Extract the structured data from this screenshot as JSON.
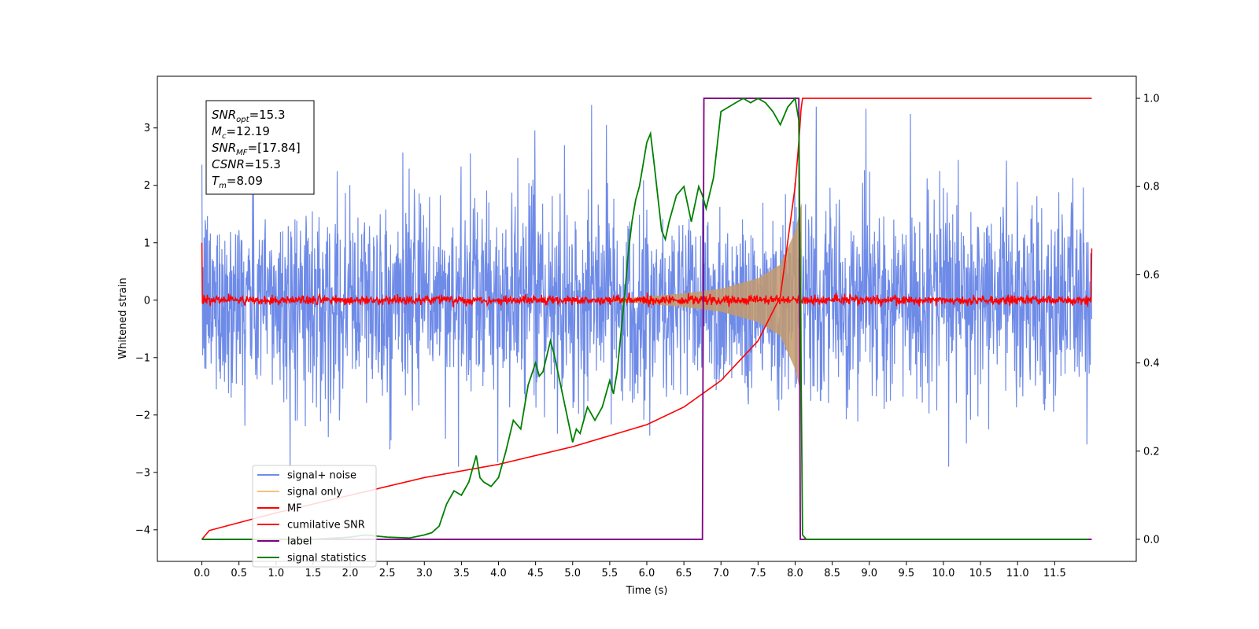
{
  "chart_data": {
    "type": "line",
    "xlabel": "Time (s)",
    "ylabel": "Whitened strain",
    "xlim": [
      -0.6,
      12.6
    ],
    "ylim": [
      -4.55,
      3.9
    ],
    "ylim_right": [
      -0.05,
      1.05
    ],
    "x_ticks": [
      0.0,
      0.5,
      1.0,
      1.5,
      2.0,
      2.5,
      3.0,
      3.5,
      4.0,
      4.5,
      5.0,
      5.5,
      6.0,
      6.5,
      7.0,
      7.5,
      8.0,
      8.5,
      9.0,
      9.5,
      10.0,
      10.5,
      11.0,
      11.5
    ],
    "x_tick_labels": [
      "0.0",
      "0.5",
      "1.0",
      "1.5",
      "2.0",
      "2.5",
      "3.0",
      "3.5",
      "4.0",
      "4.5",
      "5.0",
      "5.5",
      "6.0",
      "6.5",
      "7.0",
      "7.5",
      "8.0",
      "8.5",
      "9.0",
      "9.5",
      "10.0",
      "10.5",
      "11.0",
      "11.5"
    ],
    "y_ticks": [
      -4,
      -3,
      -2,
      -1,
      0,
      1,
      2,
      3
    ],
    "y_tick_labels": [
      "−4",
      "−3",
      "−2",
      "−1",
      "0",
      "1",
      "2",
      "3"
    ],
    "y2_ticks": [
      0.0,
      0.2,
      0.4,
      0.6,
      0.8,
      1.0
    ],
    "y2_tick_labels": [
      "0.0",
      "0.2",
      "0.4",
      "0.6",
      "0.8",
      "1.0"
    ],
    "grid": false,
    "legend_position": "lower-left",
    "time_span": [
      0.0,
      12.0
    ],
    "merger_time": 8.09,
    "chirp_start": 5.3,
    "series": [
      {
        "name": "signal+ noise",
        "axis": "left",
        "color": "#6f8be8",
        "noise_std": 0.85,
        "peak_range": [
          -2.9,
          3.4
        ]
      },
      {
        "name": "signal only",
        "axis": "left",
        "color": "#f2c47a",
        "envelope": {
          "t": [
            5.3,
            6.0,
            6.5,
            7.0,
            7.5,
            7.8,
            8.0,
            8.09
          ],
          "amp": [
            0.01,
            0.06,
            0.12,
            0.2,
            0.38,
            0.62,
            1.2,
            1.7
          ]
        }
      },
      {
        "name": "MF",
        "axis": "left",
        "color": "#ff0000",
        "noise_std": 0.04,
        "edges": {
          "start": 1.0,
          "end": 0.9
        }
      },
      {
        "name": "cumilative SNR",
        "axis": "right",
        "color": "#ff0000",
        "points": {
          "x": [
            0.0,
            0.1,
            1.0,
            2.0,
            3.0,
            4.0,
            5.0,
            6.0,
            6.5,
            7.0,
            7.5,
            7.8,
            8.0,
            8.05,
            8.09,
            8.1,
            12.0
          ],
          "y": [
            0.0,
            0.02,
            0.06,
            0.1,
            0.14,
            0.17,
            0.21,
            0.26,
            0.3,
            0.36,
            0.45,
            0.55,
            0.8,
            0.9,
            1.0,
            1.0,
            1.0
          ]
        }
      },
      {
        "name": "label",
        "axis": "right",
        "color": "#800080",
        "points": {
          "x": [
            0.0,
            6.75,
            6.77,
            8.05,
            8.07,
            12.0
          ],
          "y": [
            0.0,
            0.0,
            1.0,
            1.0,
            0.0,
            0.0
          ]
        }
      },
      {
        "name": "signal statistics",
        "axis": "right",
        "color": "#008000",
        "points": {
          "x": [
            0.0,
            0.5,
            1.0,
            1.5,
            2.0,
            2.2,
            2.5,
            2.8,
            3.0,
            3.1,
            3.2,
            3.3,
            3.4,
            3.5,
            3.6,
            3.7,
            3.75,
            3.8,
            3.9,
            4.0,
            4.1,
            4.2,
            4.3,
            4.35,
            4.4,
            4.5,
            4.55,
            4.6,
            4.7,
            4.75,
            4.8,
            4.9,
            5.0,
            5.05,
            5.1,
            5.2,
            5.3,
            5.4,
            5.5,
            5.55,
            5.6,
            5.7,
            5.75,
            5.8,
            5.85,
            5.9,
            6.0,
            6.05,
            6.1,
            6.2,
            6.25,
            6.3,
            6.4,
            6.5,
            6.6,
            6.7,
            6.75,
            6.8,
            6.9,
            7.0,
            7.1,
            7.2,
            7.3,
            7.4,
            7.5,
            7.6,
            7.7,
            7.8,
            7.9,
            8.0,
            8.05,
            8.1,
            8.15,
            8.2,
            9.0,
            10.0,
            11.0,
            11.95
          ],
          "y": [
            0.0,
            0.0,
            0.0,
            0.0,
            0.005,
            0.01,
            0.005,
            0.003,
            0.01,
            0.015,
            0.03,
            0.08,
            0.11,
            0.1,
            0.13,
            0.19,
            0.14,
            0.13,
            0.12,
            0.14,
            0.2,
            0.27,
            0.25,
            0.3,
            0.35,
            0.4,
            0.37,
            0.38,
            0.45,
            0.42,
            0.38,
            0.3,
            0.22,
            0.25,
            0.24,
            0.3,
            0.27,
            0.3,
            0.36,
            0.33,
            0.38,
            0.55,
            0.65,
            0.72,
            0.77,
            0.8,
            0.9,
            0.92,
            0.85,
            0.7,
            0.68,
            0.72,
            0.78,
            0.8,
            0.72,
            0.8,
            0.78,
            0.75,
            0.82,
            0.97,
            0.98,
            0.99,
            1.0,
            0.99,
            1.0,
            0.99,
            0.97,
            0.94,
            0.98,
            1.0,
            0.95,
            0.01,
            0.0,
            0.0,
            0.0,
            0.0,
            0.0,
            0.0
          ]
        }
      }
    ]
  },
  "annotation": {
    "lines": [
      {
        "base": "SNR",
        "sub": "opt",
        "value": "=15.3"
      },
      {
        "base": "M",
        "sub": "c",
        "value": "=12.19"
      },
      {
        "base": "SNR",
        "sub": "MF",
        "value": "=[17.84]"
      },
      {
        "base": "CSNR",
        "sub": "",
        "value": "=15.3"
      },
      {
        "base": "T",
        "sub": "m",
        "value": "=8.09"
      }
    ]
  },
  "legend": {
    "entries": [
      "signal+ noise",
      "signal only",
      "MF",
      "cumilative SNR",
      "label",
      "signal statistics"
    ],
    "colors": [
      "#6f8be8",
      "#f2c47a",
      "#ff0000",
      "#ff0000",
      "#800080",
      "#008000"
    ]
  }
}
